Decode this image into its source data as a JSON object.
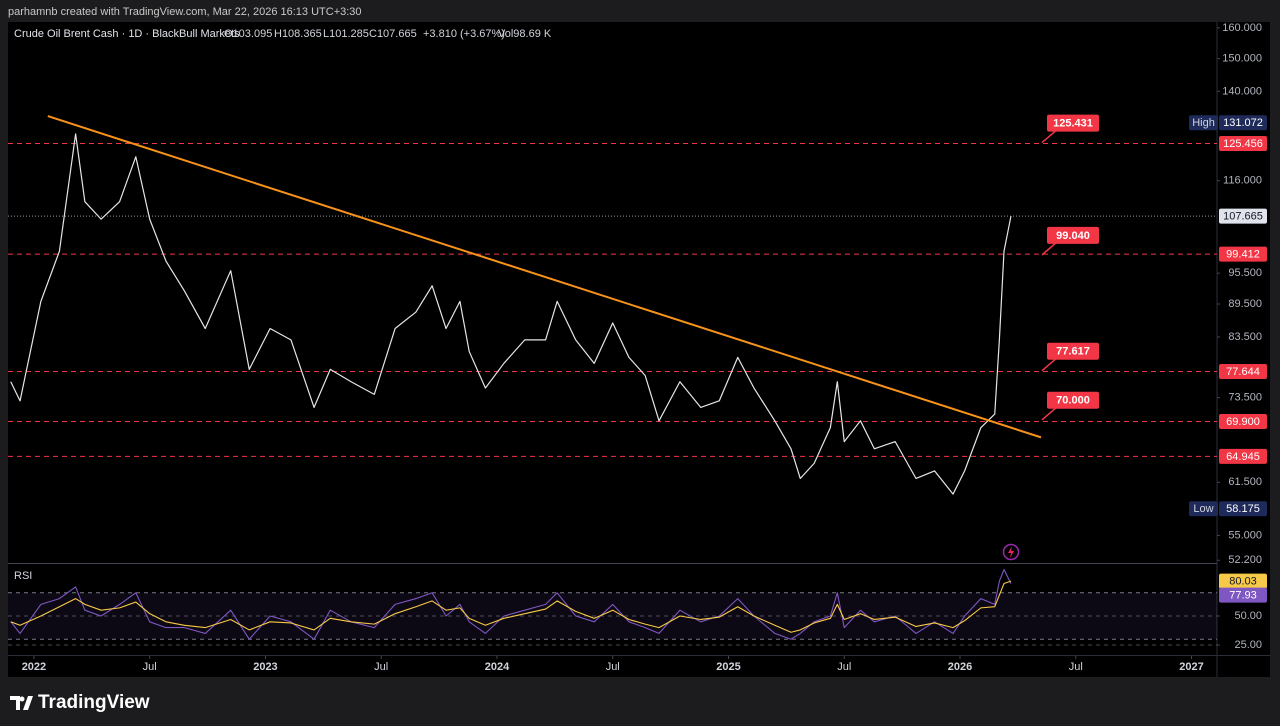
{
  "header": {
    "attribution": "parhamnb created with TradingView.com, Mar 22, 2026 16:13 UTC+3:30"
  },
  "legend": {
    "symbol": "Crude Oil Brent Cash · 1D · BlackBull Markets",
    "open": "O103.095",
    "high": "H108.365",
    "low": "L101.285",
    "close": "C107.665",
    "change": "+3.810 (+3.67%)",
    "volume": "Vol98.69 K"
  },
  "footer": {
    "brand": "TradingView"
  },
  "chart_data": [
    {
      "type": "line",
      "log_scale": true,
      "xlim": [
        2021.888,
        2027.11
      ],
      "xticks": [
        {
          "value": 2022,
          "label": "2022"
        },
        {
          "value": 2022.5,
          "label": "Jul"
        },
        {
          "value": 2023,
          "label": "2023"
        },
        {
          "value": 2023.5,
          "label": "Jul"
        },
        {
          "value": 2024,
          "label": "2024"
        },
        {
          "value": 2024.5,
          "label": "Jul"
        },
        {
          "value": 2025,
          "label": "2025"
        },
        {
          "value": 2025.5,
          "label": "Jul"
        },
        {
          "value": 2026,
          "label": "2026"
        },
        {
          "value": 2026.5,
          "label": "Jul"
        },
        {
          "value": 2027,
          "label": "2027"
        }
      ],
      "ylim": [
        51.9,
        162
      ],
      "yticks": [
        {
          "value": 160,
          "label": "160.000"
        },
        {
          "value": 150,
          "label": "150.000"
        },
        {
          "value": 140,
          "label": "140.000"
        },
        {
          "value": 116,
          "label": "116.000"
        },
        {
          "value": 95.5,
          "label": "95.500"
        },
        {
          "value": 89.5,
          "label": "89.500"
        },
        {
          "value": 83.5,
          "label": "83.500"
        },
        {
          "value": 73.5,
          "label": "73.500"
        },
        {
          "value": 61.5,
          "label": "61.500"
        },
        {
          "value": 55,
          "label": "55.000"
        },
        {
          "value": 52.2,
          "label": "52.200"
        }
      ],
      "x": [
        2021.9,
        2021.94,
        2022.03,
        2022.11,
        2022.18,
        2022.22,
        2022.29,
        2022.37,
        2022.44,
        2022.5,
        2022.57,
        2022.65,
        2022.74,
        2022.85,
        2022.93,
        2023.02,
        2023.11,
        2023.21,
        2023.28,
        2023.37,
        2023.47,
        2023.56,
        2023.65,
        2023.72,
        2023.78,
        2023.84,
        2023.88,
        2023.95,
        2024.03,
        2024.12,
        2024.21,
        2024.26,
        2024.34,
        2024.42,
        2024.5,
        2024.57,
        2024.64,
        2024.7,
        2024.79,
        2024.88,
        2024.96,
        2025.04,
        2025.11,
        2025.2,
        2025.27,
        2025.31,
        2025.37,
        2025.44,
        2025.47,
        2025.5,
        2025.57,
        2025.63,
        2025.72,
        2025.81,
        2025.89,
        2025.97,
        2026.02,
        2026.09,
        2026.15,
        2026.17,
        2026.19,
        2026.22
      ],
      "series": [
        {
          "color": "#e6e6e6",
          "values": [
            76,
            73,
            90,
            100,
            128,
            111,
            107,
            111,
            122,
            107,
            98,
            92,
            85,
            96,
            78,
            85,
            83,
            72,
            78,
            76,
            74,
            85,
            88,
            93,
            85,
            90,
            81,
            75,
            79,
            83,
            83,
            90,
            83,
            79,
            86,
            80,
            77,
            70,
            76,
            72,
            73,
            80,
            75,
            70,
            66,
            62,
            64,
            69,
            76,
            67,
            70,
            66,
            67,
            62,
            63,
            60,
            63,
            69,
            71,
            83,
            100,
            107.665
          ]
        }
      ],
      "last_price": 107.665,
      "trendline": {
        "color": "#f7931a",
        "x": [
          2022.06,
          2026.35
        ],
        "values": [
          132.9,
          67.6
        ]
      },
      "level_color": "#f23645",
      "levels": [
        125.456,
        99.412,
        77.644,
        {
          "value": 69.9,
          "label": "69.900"
        },
        64.945
      ],
      "annotations": [
        125.431,
        {
          "value": 99.04,
          "label": "99.040"
        },
        77.617,
        {
          "value": 70,
          "label": "70.000"
        }
      ],
      "high": {
        "label": "High",
        "value": 131.072
      },
      "low": {
        "label": "Low",
        "value": 58.175
      }
    },
    {
      "type": "line",
      "title": "RSI",
      "xlim": [
        2021.888,
        2027.11
      ],
      "ylim": [
        16.4,
        94.8
      ],
      "yticks": [
        {
          "value": 50,
          "label": "50.00"
        },
        {
          "value": 25,
          "label": "25.00"
        }
      ],
      "band": [
        30,
        70
      ],
      "x": [
        2021.9,
        2021.94,
        2022.03,
        2022.11,
        2022.18,
        2022.22,
        2022.29,
        2022.37,
        2022.44,
        2022.5,
        2022.57,
        2022.65,
        2022.74,
        2022.85,
        2022.93,
        2023.02,
        2023.11,
        2023.21,
        2023.28,
        2023.37,
        2023.47,
        2023.56,
        2023.65,
        2023.72,
        2023.78,
        2023.84,
        2023.88,
        2023.95,
        2024.03,
        2024.12,
        2024.21,
        2024.26,
        2024.34,
        2024.42,
        2024.5,
        2024.57,
        2024.64,
        2024.7,
        2024.79,
        2024.88,
        2024.96,
        2025.04,
        2025.11,
        2025.2,
        2025.27,
        2025.31,
        2025.37,
        2025.44,
        2025.47,
        2025.5,
        2025.57,
        2025.63,
        2025.72,
        2025.81,
        2025.89,
        2025.97,
        2026.02,
        2026.09,
        2026.15,
        2026.17,
        2026.19,
        2026.22
      ],
      "series": [
        {
          "color": "#7e57c2",
          "values": [
            45,
            35,
            60,
            65,
            75,
            55,
            50,
            60,
            70,
            45,
            40,
            40,
            35,
            55,
            30,
            50,
            45,
            30,
            55,
            45,
            40,
            60,
            65,
            70,
            50,
            60,
            45,
            35,
            50,
            55,
            60,
            70,
            50,
            45,
            60,
            45,
            40,
            35,
            55,
            45,
            50,
            65,
            50,
            35,
            30,
            35,
            45,
            50,
            70,
            40,
            55,
            45,
            50,
            35,
            45,
            35,
            50,
            65,
            60,
            80,
            90,
            77.93
          ]
        },
        {
          "color": "#f7c948",
          "values": [
            45,
            42,
            50,
            58,
            65,
            60,
            55,
            57,
            62,
            52,
            45,
            42,
            40,
            47,
            38,
            45,
            44,
            38,
            48,
            45,
            43,
            52,
            58,
            63,
            55,
            57,
            48,
            42,
            48,
            52,
            56,
            63,
            54,
            48,
            55,
            47,
            43,
            40,
            50,
            47,
            49,
            58,
            50,
            42,
            36,
            38,
            44,
            48,
            60,
            47,
            52,
            47,
            49,
            41,
            44,
            40,
            46,
            57,
            58,
            68,
            78,
            80.03
          ]
        }
      ]
    }
  ]
}
